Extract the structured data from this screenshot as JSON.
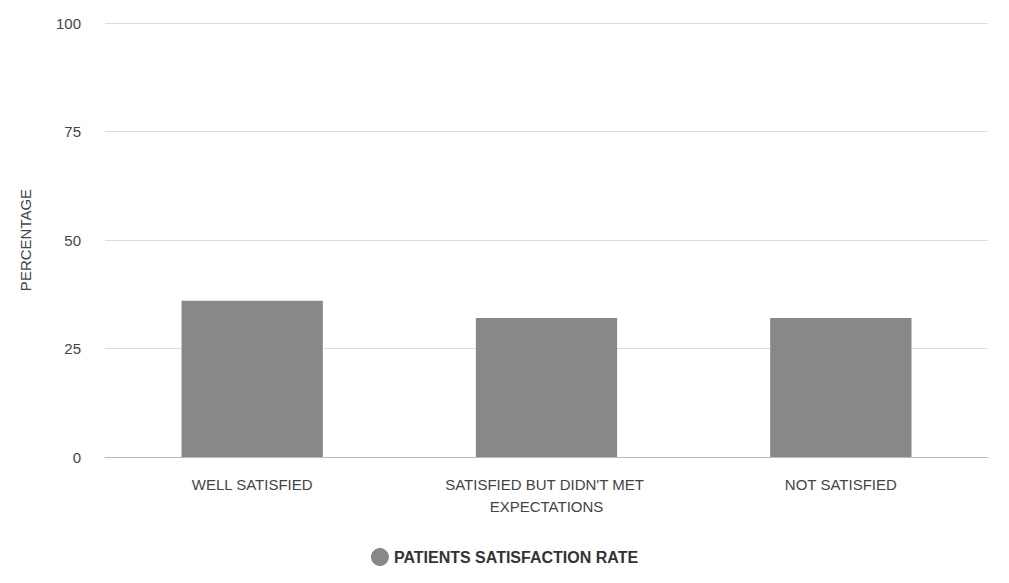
{
  "chart_data": {
    "type": "bar",
    "y_label": "PERCENTAGE",
    "categories": [
      "WELL SATISFIED",
      "SATISFIED BUT DIDN'T MET EXPECTATIONS",
      "NOT SATISFIED"
    ],
    "series": [
      {
        "name": "PATIENTS SATISFACTION RATE",
        "color": "#888888",
        "values": [
          36,
          32,
          32
        ]
      }
    ],
    "ylim": [
      0,
      100
    ],
    "yticks": [
      0,
      25,
      50,
      75,
      100
    ],
    "grid": true,
    "legend": "bottom"
  }
}
